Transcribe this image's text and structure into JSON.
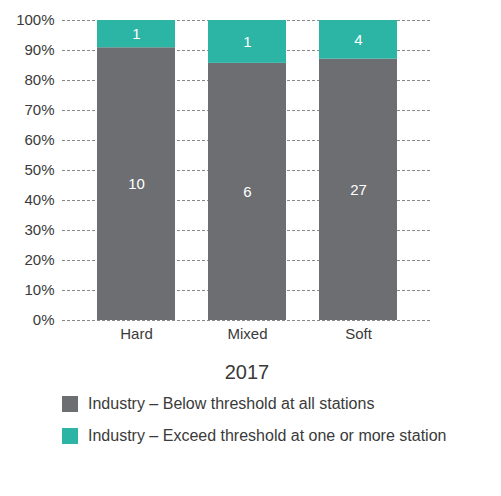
{
  "chart_data": {
    "type": "bar",
    "stacked": true,
    "data_labels": true,
    "grid": true,
    "legend": "bottom",
    "xlabel": "2017",
    "categories": [
      "Hard",
      "Mixed",
      "Soft"
    ],
    "series": [
      {
        "name": "Industry – Below threshold at all stations",
        "color": "#6d6e71",
        "values": [
          10,
          6,
          27
        ]
      },
      {
        "name": "Industry – Exceed threshold at one or more station",
        "color": "#2cb5a5",
        "values": [
          1,
          1,
          4
        ]
      }
    ],
    "ylim": [
      0,
      100
    ],
    "yticks": [
      {
        "value": 0,
        "label": "0%"
      },
      {
        "value": 10,
        "label": "10%"
      },
      {
        "value": 20,
        "label": "20%"
      },
      {
        "value": 30,
        "label": "30%"
      },
      {
        "value": 40,
        "label": "40%"
      },
      {
        "value": 50,
        "label": "50%"
      },
      {
        "value": 60,
        "label": "60%"
      },
      {
        "value": 70,
        "label": "70%"
      },
      {
        "value": 80,
        "label": "80%"
      },
      {
        "value": 90,
        "label": "90%"
      },
      {
        "value": 100,
        "label": "100%"
      }
    ]
  }
}
